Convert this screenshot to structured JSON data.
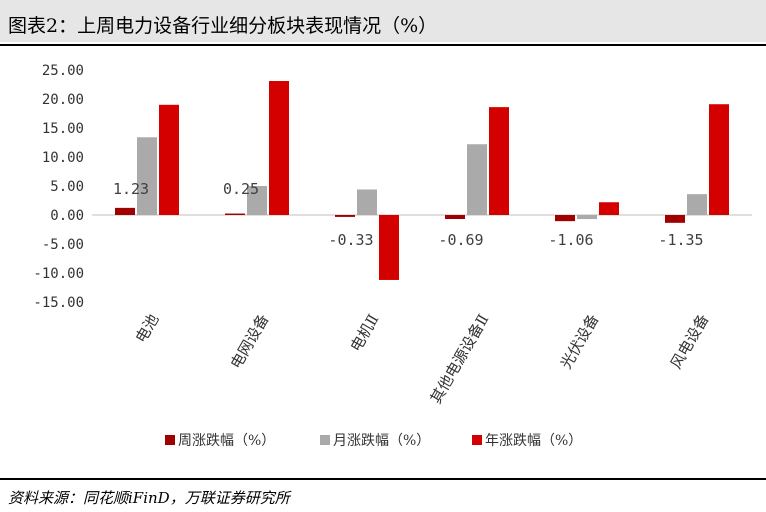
{
  "title": "图表2：上周电力设备行业细分板块表现情况（%）",
  "source": "资料来源：同花顺iFinD，万联证券研究所",
  "chart_data": {
    "type": "bar",
    "categories": [
      "电池",
      "电网设备",
      "电机Ⅱ",
      "其他电源设备Ⅱ",
      "光伏设备",
      "风电设备"
    ],
    "series": [
      {
        "name": "周涨跌幅（%）",
        "color": "#a00000",
        "values": [
          1.23,
          0.25,
          -0.33,
          -0.69,
          -1.06,
          -1.35
        ]
      },
      {
        "name": "月涨跌幅（%）",
        "color": "#aaaaaa",
        "values": [
          13.4,
          5.0,
          4.4,
          12.2,
          -0.7,
          3.6
        ]
      },
      {
        "name": "年涨跌幅（%）",
        "color": "#d40000",
        "values": [
          19.0,
          23.1,
          -11.2,
          18.6,
          2.2,
          19.1
        ]
      }
    ],
    "data_labels": [
      "1.23",
      "0.25",
      "-0.33",
      "-0.69",
      "-1.06",
      "-1.35"
    ],
    "y_ticks": [
      "25.00",
      "20.00",
      "15.00",
      "10.00",
      "5.00",
      "0.00",
      "-5.00",
      "-10.00",
      "-15.00"
    ],
    "ylim": [
      -15,
      25
    ],
    "grid": false,
    "legend_position": "bottom"
  }
}
